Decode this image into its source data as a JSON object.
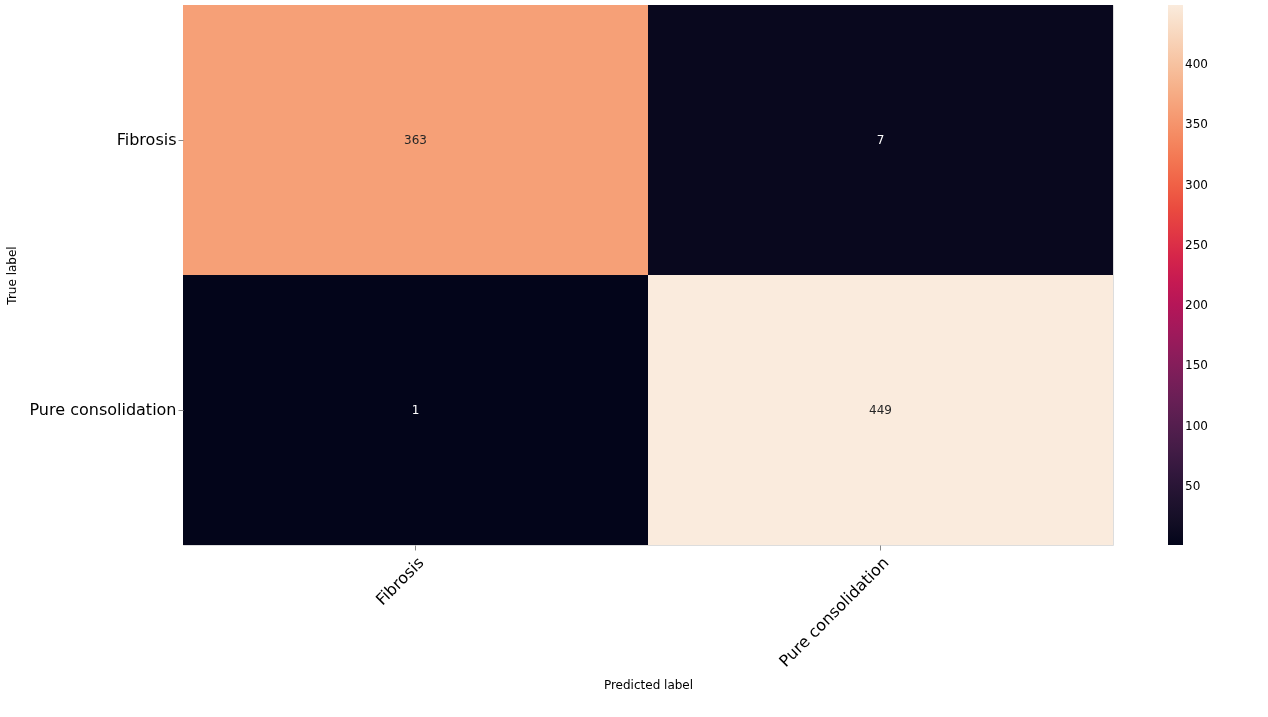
{
  "chart_data": {
    "type": "heatmap",
    "xlabel": "Predicted label",
    "ylabel": "True label",
    "categories": [
      "Fibrosis",
      "Pure consolidation"
    ],
    "y_categories": [
      "Fibrosis",
      "Pure consolidation"
    ],
    "cells": [
      [
        363,
        7
      ],
      [
        1,
        449
      ]
    ],
    "clim": [
      1,
      449
    ],
    "cticks": [
      50,
      100,
      150,
      200,
      250,
      300,
      350,
      400
    ],
    "data_labels": true
  }
}
